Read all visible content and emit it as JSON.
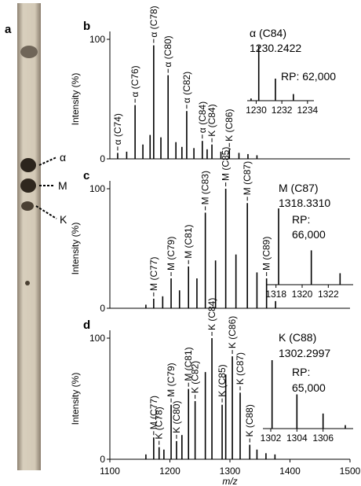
{
  "panel_a": {
    "panel_label": "a",
    "bands": [
      "α",
      "M",
      "K"
    ]
  },
  "chart_data": [
    {
      "type": "spectrum",
      "panel_label": "b",
      "ylabel": "Intensity (%)",
      "xlim": [
        1100,
        1500
      ],
      "ylim": [
        0,
        100
      ],
      "yticks": [
        0,
        100
      ],
      "x": [
        1113,
        1128,
        1142,
        1155,
        1167,
        1173,
        1185,
        1197,
        1210,
        1220,
        1228,
        1240,
        1254,
        1262,
        1270,
        1285,
        1299,
        1315,
        1330,
        1345
      ],
      "values": [
        5,
        6,
        45,
        12,
        20,
        95,
        18,
        70,
        14,
        10,
        40,
        9,
        15,
        8,
        12,
        6,
        8,
        5,
        4,
        3
      ],
      "peak_labels": [
        "α (C74)",
        null,
        "α (C76)",
        null,
        null,
        "α (C78)",
        null,
        "α (C80)",
        null,
        null,
        "α (C82)",
        null,
        "α (C84)",
        null,
        "K (C84)",
        null,
        "K (C86)",
        null,
        null,
        null
      ],
      "inset": {
        "title": "α (C84)",
        "mass": "1230.2422",
        "resolution": [
          "RP: 62,000"
        ],
        "xlim": [
          1229.3,
          1234.5
        ],
        "ylim": [
          0,
          100
        ],
        "xticks": [
          1230,
          1232,
          1234
        ],
        "x": [
          1229.6,
          1230.2,
          1231.5,
          1232.9
        ],
        "values": [
          4,
          100,
          40,
          12
        ]
      }
    },
    {
      "type": "spectrum",
      "panel_label": "c",
      "ylabel": "Intensity (%)",
      "xlim": [
        1100,
        1500
      ],
      "ylim": [
        0,
        100
      ],
      "yticks": [
        0,
        100
      ],
      "x": [
        1160,
        1173,
        1188,
        1202,
        1216,
        1231,
        1245,
        1259,
        1276,
        1293,
        1310,
        1329,
        1345,
        1361,
        1376
      ],
      "values": [
        3,
        8,
        10,
        25,
        15,
        35,
        25,
        80,
        40,
        100,
        45,
        88,
        30,
        25,
        6
      ],
      "peak_labels": [
        null,
        "M (C77)",
        null,
        "M (C79)",
        null,
        "M (C81)",
        null,
        "M (C83)",
        null,
        "M (C85)",
        null,
        "M (C87)",
        null,
        "M (C89)",
        null
      ],
      "inset": {
        "title": "M (C87)",
        "mass": "1318.3310",
        "resolution": [
          "RP:",
          "66,000"
        ],
        "xlim": [
          1317.3,
          1323.9
        ],
        "ylim": [
          0,
          100
        ],
        "xticks": [
          1318,
          1320,
          1322
        ],
        "x": [
          1318.2,
          1320.7,
          1322.9
        ],
        "values": [
          100,
          45,
          15
        ]
      }
    },
    {
      "type": "spectrum",
      "panel_label": "d",
      "ylabel": "Intensity (%)",
      "xlabel": "m/z",
      "xlim": [
        1100,
        1500
      ],
      "ylim": [
        0,
        100
      ],
      "yticks": [
        0,
        100
      ],
      "xticks": [
        1100,
        1200,
        1300,
        1400,
        1500
      ],
      "x": [
        1160,
        1173,
        1182,
        1190,
        1202,
        1211,
        1220,
        1231,
        1242,
        1259,
        1270,
        1287,
        1293,
        1304,
        1317,
        1333,
        1345,
        1360,
        1375
      ],
      "values": [
        4,
        18,
        10,
        8,
        45,
        15,
        20,
        58,
        48,
        72,
        100,
        45,
        70,
        85,
        55,
        12,
        8,
        5,
        4
      ],
      "peak_labels": [
        null,
        "M (C77)",
        "K (C78)",
        null,
        "M (C79)",
        "K (C80)",
        null,
        "M (C81)",
        "K (C82)",
        null,
        "K (C84)",
        "K (C85)",
        null,
        "K (C86)",
        "K (C87)",
        "K (C88)",
        null,
        null,
        null
      ],
      "inset": {
        "title": "K (C88)",
        "mass": "1302.2997",
        "resolution": [
          "RP:",
          "65,000"
        ],
        "xlim": [
          1301.4,
          1308.3
        ],
        "ylim": [
          0,
          100
        ],
        "xticks": [
          1302,
          1304,
          1306
        ],
        "x": [
          1302.1,
          1304.0,
          1306.0,
          1307.7
        ],
        "values": [
          100,
          50,
          22,
          5
        ]
      }
    }
  ]
}
